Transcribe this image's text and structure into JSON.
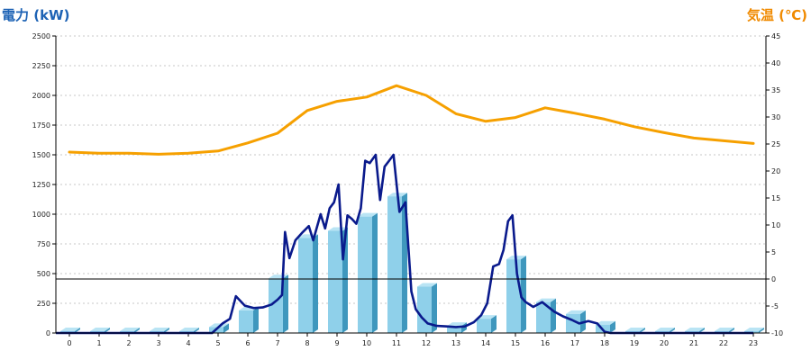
{
  "chart_data": {
    "type": "bar+line",
    "left_axis_label": "電力 (kW)",
    "right_axis_label": "気温 (℃)",
    "x_ticks": [
      "0",
      "1",
      "2",
      "3",
      "4",
      "5",
      "6",
      "7",
      "8",
      "9",
      "10",
      "11",
      "12",
      "13",
      "14",
      "15",
      "16",
      "17",
      "18",
      "19",
      "20",
      "21",
      "22",
      "23"
    ],
    "y_left_ticks": [
      "0",
      "250",
      "500",
      "750",
      "1000",
      "1250",
      "1500",
      "1750",
      "2000",
      "2250",
      "2500"
    ],
    "y_right_ticks": [
      "-10",
      "-5",
      "0",
      "5",
      "10",
      "15",
      "20",
      "25",
      "30",
      "35",
      "40",
      "45"
    ],
    "ylim_left": [
      0,
      2500
    ],
    "ylim_right": [
      -10,
      45
    ],
    "grid": true,
    "hourly_power_kw": [
      0,
      0,
      0,
      0,
      0,
      50,
      190,
      460,
      800,
      860,
      980,
      1150,
      390,
      60,
      120,
      620,
      260,
      160,
      70,
      0,
      0,
      0,
      0,
      0
    ],
    "realtime_power_kw": {
      "x": [
        0,
        1,
        2,
        3,
        4,
        4.8,
        5.15,
        5.4,
        5.6,
        5.9,
        6.2,
        6.5,
        6.8,
        7.0,
        7.15,
        7.25,
        7.4,
        7.6,
        7.85,
        8.05,
        8.2,
        8.45,
        8.6,
        8.75,
        8.9,
        9.05,
        9.2,
        9.35,
        9.5,
        9.65,
        9.8,
        9.95,
        10.1,
        10.3,
        10.45,
        10.6,
        10.75,
        10.9,
        11.1,
        11.3,
        11.5,
        11.65,
        11.85,
        12.05,
        12.35,
        12.7,
        13.0,
        13.3,
        13.6,
        13.85,
        14.05,
        14.25,
        14.45,
        14.6,
        14.75,
        14.9,
        15.05,
        15.2,
        15.35,
        15.6,
        15.9,
        16.1,
        16.3,
        16.6,
        16.9,
        17.15,
        17.45,
        17.75,
        18.0,
        18.2,
        18.4,
        19,
        20,
        21,
        22,
        23
      ],
      "y": [
        0,
        0,
        0,
        0,
        0,
        0,
        80,
        120,
        310,
        230,
        210,
        215,
        240,
        280,
        320,
        850,
        630,
        780,
        850,
        900,
        780,
        1000,
        880,
        1050,
        1100,
        1250,
        620,
        990,
        960,
        920,
        1050,
        1450,
        1430,
        1500,
        1120,
        1400,
        1450,
        1500,
        1020,
        1100,
        350,
        200,
        130,
        80,
        60,
        55,
        50,
        55,
        90,
        150,
        250,
        560,
        580,
        700,
        940,
        990,
        500,
        300,
        260,
        220,
        260,
        220,
        180,
        140,
        110,
        80,
        100,
        80,
        10,
        0,
        0,
        0,
        0,
        0,
        0,
        0
      ]
    },
    "temperature_c": {
      "x": [
        0,
        1,
        2,
        3,
        4,
        5,
        6,
        7,
        8,
        9,
        10,
        11,
        12,
        13,
        14,
        15,
        16,
        17,
        18,
        19,
        20,
        21,
        22,
        23
      ],
      "y": [
        23.5,
        23.3,
        23.3,
        23.1,
        23.3,
        23.7,
        25.2,
        27,
        31.2,
        32.9,
        33.7,
        35.8,
        34,
        30.6,
        29.2,
        29.9,
        31.7,
        30.7,
        29.6,
        28.2,
        27.1,
        26.1,
        25.6,
        25.1
      ]
    },
    "colors": {
      "left_axis_title": "#1e63b5",
      "right_axis_title": "#f08a00",
      "bar_front": "#8fd0ea",
      "bar_side": "#3f97bd",
      "bar_top": "#b9e4f4",
      "power_line": "#0a1a8c",
      "temperature_line": "#f6a000",
      "grid": "#b5b5b5"
    }
  }
}
